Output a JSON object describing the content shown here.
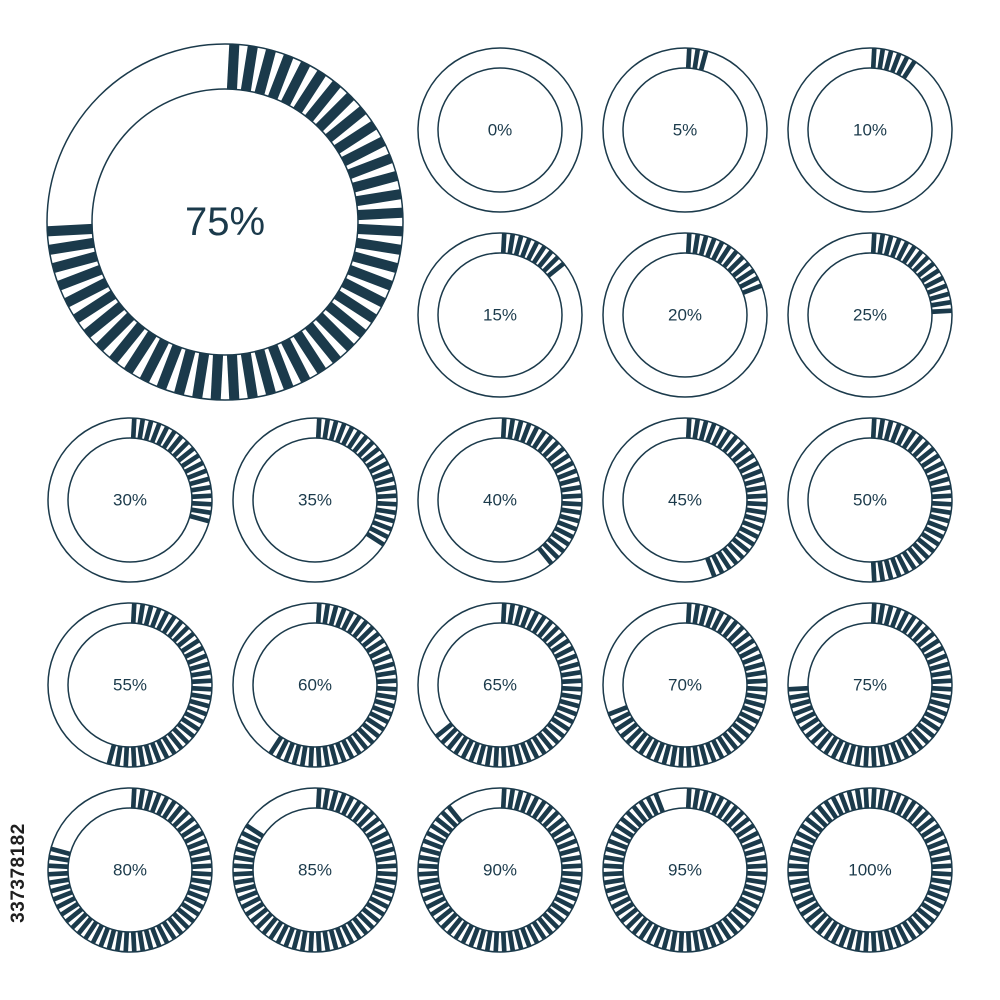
{
  "colors": {
    "ring": "#1b3a4b",
    "background": "#ffffff"
  },
  "featured": {
    "percent": 75,
    "label": "75%"
  },
  "indicators": [
    {
      "percent": 0,
      "label": "0%"
    },
    {
      "percent": 5,
      "label": "5%"
    },
    {
      "percent": 10,
      "label": "10%"
    },
    {
      "percent": 15,
      "label": "15%"
    },
    {
      "percent": 20,
      "label": "20%"
    },
    {
      "percent": 25,
      "label": "25%"
    },
    {
      "percent": 30,
      "label": "30%"
    },
    {
      "percent": 35,
      "label": "35%"
    },
    {
      "percent": 40,
      "label": "40%"
    },
    {
      "percent": 45,
      "label": "45%"
    },
    {
      "percent": 50,
      "label": "50%"
    },
    {
      "percent": 55,
      "label": "55%"
    },
    {
      "percent": 60,
      "label": "60%"
    },
    {
      "percent": 65,
      "label": "65%"
    },
    {
      "percent": 70,
      "label": "70%"
    },
    {
      "percent": 75,
      "label": "75%"
    },
    {
      "percent": 80,
      "label": "80%"
    },
    {
      "percent": 85,
      "label": "85%"
    },
    {
      "percent": 90,
      "label": "90%"
    },
    {
      "percent": 95,
      "label": "95%"
    },
    {
      "percent": 100,
      "label": "100%"
    }
  ],
  "stock_id": "337378182"
}
